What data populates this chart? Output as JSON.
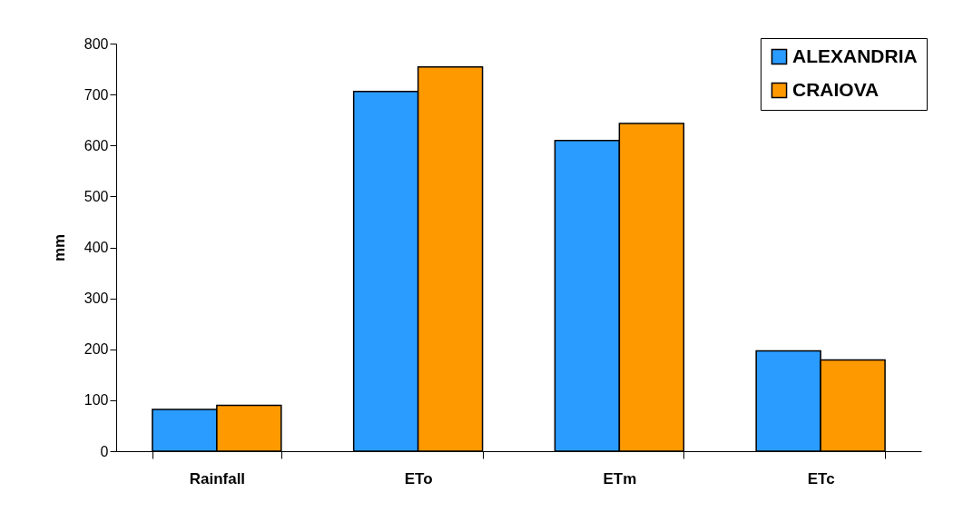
{
  "chart_data": {
    "type": "bar",
    "ylabel": "mm",
    "categories": [
      "Rainfall",
      "ETo",
      "ETm",
      "ETc"
    ],
    "series": [
      {
        "name": "ALEXANDRIA",
        "color": "#2b9cff",
        "values": [
          82,
          706,
          610,
          197
        ]
      },
      {
        "name": "CRAIOVA",
        "color": "#ff9900",
        "values": [
          90,
          754,
          643,
          179
        ]
      }
    ],
    "ylim": [
      0,
      800
    ],
    "yticks": [
      0,
      100,
      200,
      300,
      400,
      500,
      600,
      700,
      800
    ],
    "grid": false,
    "legend": "top right"
  }
}
